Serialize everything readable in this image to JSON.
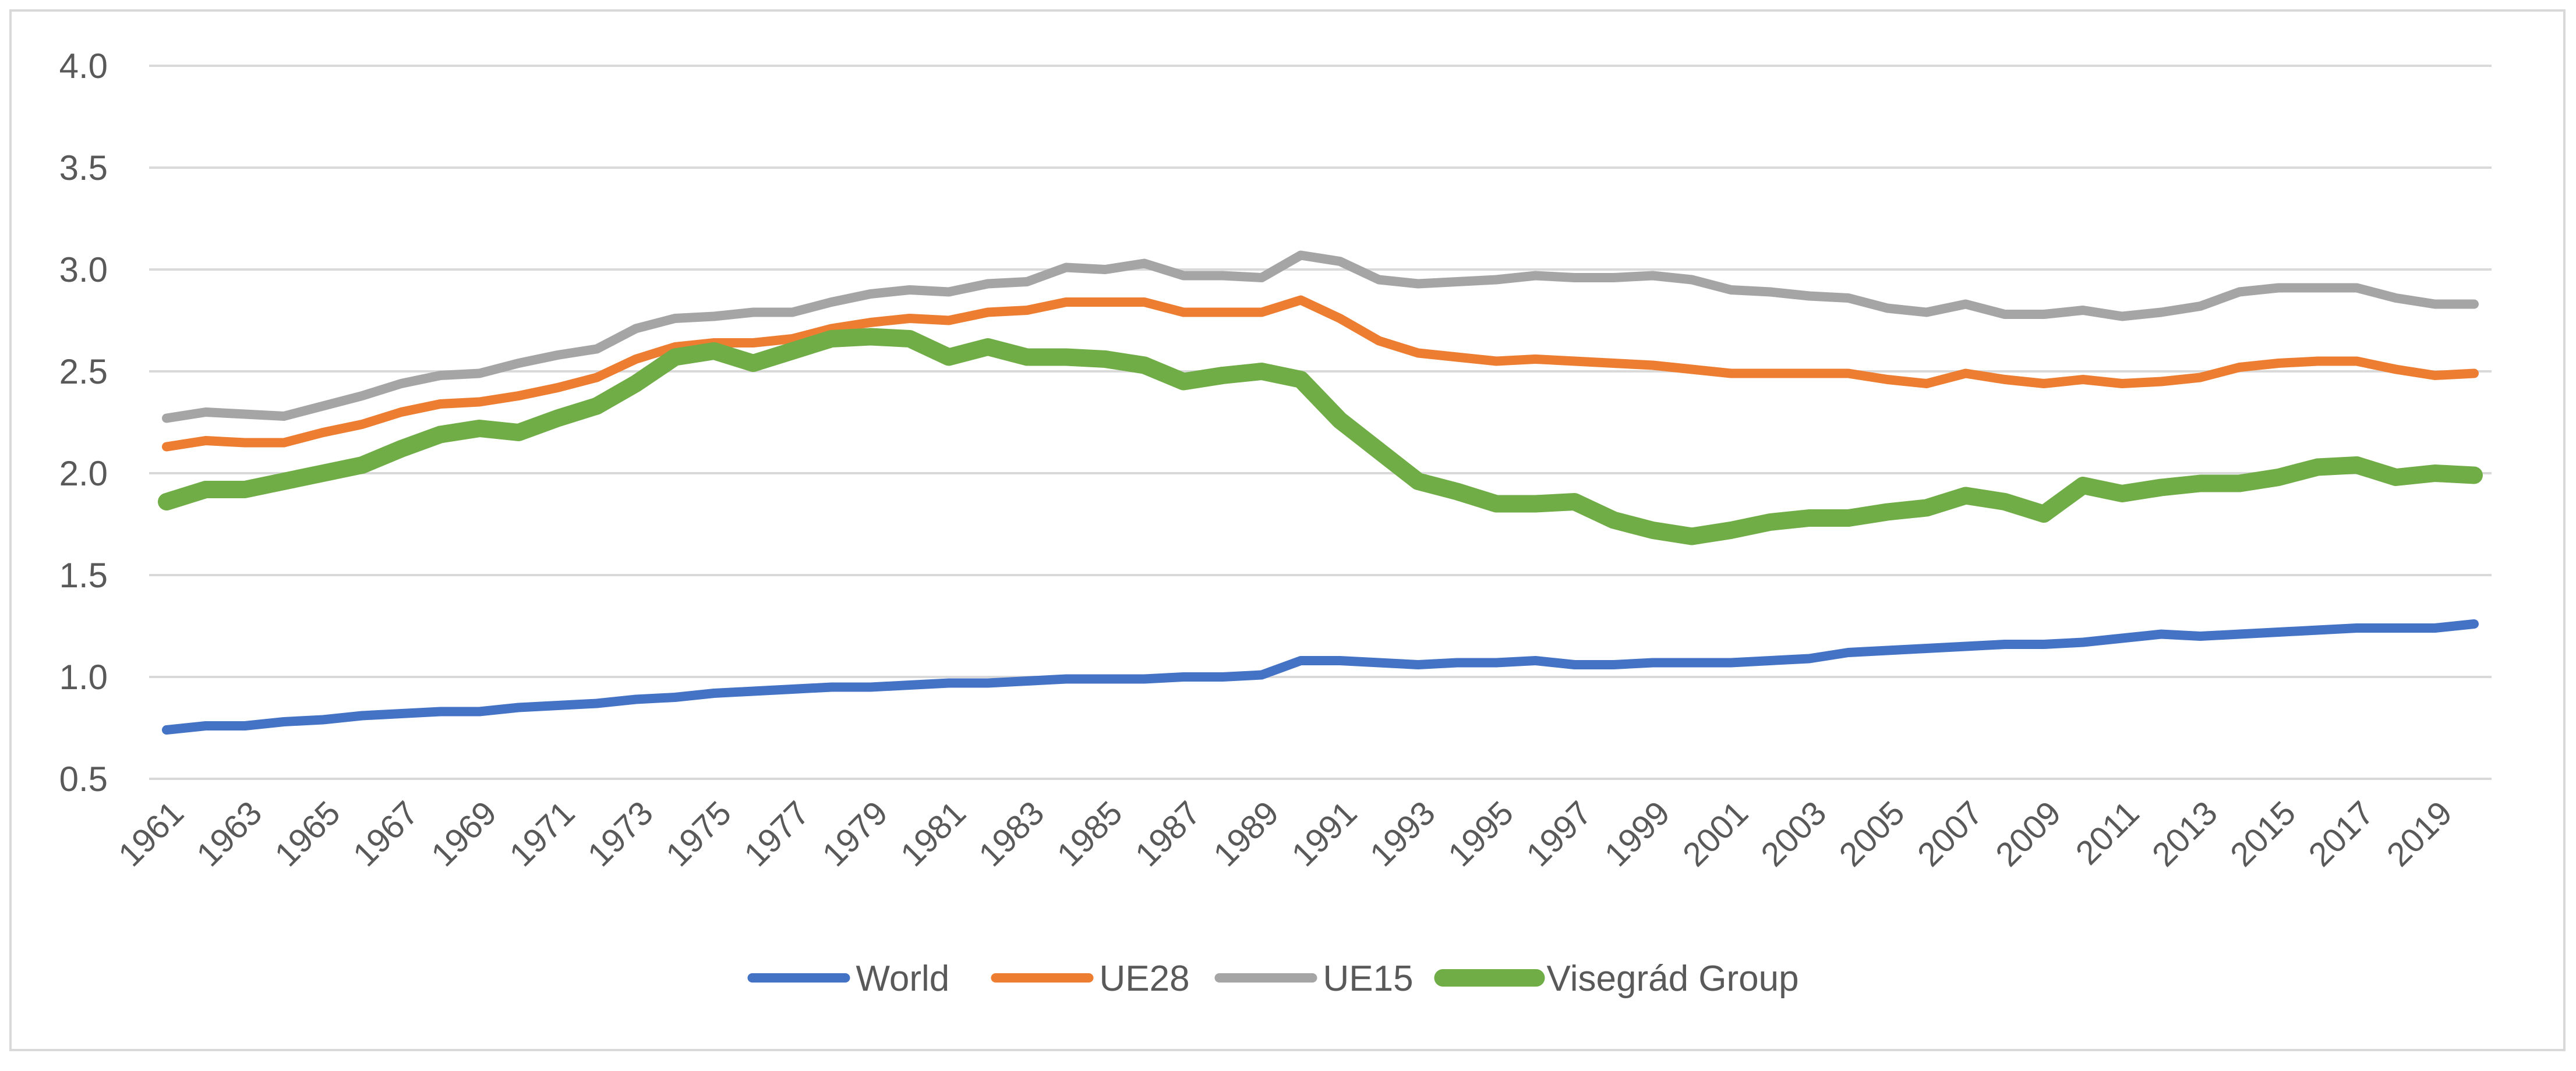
{
  "chart_data": {
    "type": "line",
    "title": "",
    "xlabel": "",
    "ylabel": "",
    "ylim": [
      0.5,
      4.0
    ],
    "yticks": [
      "0.5",
      "1.0",
      "1.5",
      "2.0",
      "2.5",
      "3.0",
      "3.5",
      "4.0"
    ],
    "yticks_values": [
      0.5,
      1.0,
      1.5,
      2.0,
      2.5,
      3.0,
      3.5,
      4.0
    ],
    "grid": true,
    "legend_position": "bottom",
    "xtick_labels": [
      "1961",
      "1963",
      "1965",
      "1967",
      "1969",
      "1971",
      "1973",
      "1975",
      "1977",
      "1979",
      "1981",
      "1983",
      "1985",
      "1987",
      "1989",
      "1991",
      "1993",
      "1995",
      "1997",
      "1999",
      "2001",
      "2003",
      "2005",
      "2007",
      "2009",
      "2011",
      "2013",
      "2015",
      "2017",
      "2019"
    ],
    "x": [
      1961,
      1962,
      1963,
      1964,
      1965,
      1966,
      1967,
      1968,
      1969,
      1970,
      1971,
      1972,
      1973,
      1974,
      1975,
      1976,
      1977,
      1978,
      1979,
      1980,
      1981,
      1982,
      1983,
      1984,
      1985,
      1986,
      1987,
      1988,
      1989,
      1990,
      1991,
      1992,
      1993,
      1994,
      1995,
      1996,
      1997,
      1998,
      1999,
      2000,
      2001,
      2002,
      2003,
      2004,
      2005,
      2006,
      2007,
      2008,
      2009,
      2010,
      2011,
      2012,
      2013,
      2014,
      2015,
      2016,
      2017,
      2018,
      2019,
      2020
    ],
    "series": [
      {
        "name": "World",
        "color": "#4472c4",
        "width": 16,
        "values": [
          0.74,
          0.76,
          0.76,
          0.78,
          0.79,
          0.81,
          0.82,
          0.83,
          0.83,
          0.85,
          0.86,
          0.87,
          0.89,
          0.9,
          0.92,
          0.93,
          0.94,
          0.95,
          0.95,
          0.96,
          0.97,
          0.97,
          0.98,
          0.99,
          0.99,
          0.99,
          1.0,
          1.0,
          1.01,
          1.08,
          1.08,
          1.07,
          1.06,
          1.07,
          1.07,
          1.08,
          1.06,
          1.06,
          1.07,
          1.07,
          1.07,
          1.08,
          1.09,
          1.12,
          1.13,
          1.14,
          1.15,
          1.16,
          1.16,
          1.17,
          1.19,
          1.21,
          1.2,
          1.21,
          1.22,
          1.23,
          1.24,
          1.24,
          1.24,
          1.26
        ]
      },
      {
        "name": "UE28",
        "color": "#ed7d31",
        "width": 16,
        "values": [
          2.13,
          2.16,
          2.15,
          2.15,
          2.2,
          2.24,
          2.3,
          2.34,
          2.35,
          2.38,
          2.42,
          2.47,
          2.56,
          2.62,
          2.64,
          2.64,
          2.66,
          2.71,
          2.74,
          2.76,
          2.75,
          2.79,
          2.8,
          2.84,
          2.84,
          2.84,
          2.79,
          2.79,
          2.79,
          2.85,
          2.76,
          2.65,
          2.59,
          2.57,
          2.55,
          2.56,
          2.55,
          2.54,
          2.53,
          2.51,
          2.49,
          2.49,
          2.49,
          2.49,
          2.46,
          2.44,
          2.49,
          2.46,
          2.44,
          2.46,
          2.44,
          2.45,
          2.47,
          2.52,
          2.54,
          2.55,
          2.55,
          2.51,
          2.48,
          2.49
        ]
      },
      {
        "name": "UE15",
        "color": "#a5a5a5",
        "width": 16,
        "values": [
          2.27,
          2.3,
          2.29,
          2.28,
          2.33,
          2.38,
          2.44,
          2.48,
          2.49,
          2.54,
          2.58,
          2.61,
          2.71,
          2.76,
          2.77,
          2.79,
          2.79,
          2.84,
          2.88,
          2.9,
          2.89,
          2.93,
          2.94,
          3.01,
          3.0,
          3.03,
          2.97,
          2.97,
          2.96,
          3.07,
          3.04,
          2.95,
          2.93,
          2.94,
          2.95,
          2.97,
          2.96,
          2.96,
          2.97,
          2.95,
          2.9,
          2.89,
          2.87,
          2.86,
          2.81,
          2.79,
          2.83,
          2.78,
          2.78,
          2.8,
          2.77,
          2.79,
          2.82,
          2.89,
          2.91,
          2.91,
          2.91,
          2.86,
          2.83,
          2.83
        ]
      },
      {
        "name": "Visegrád Group",
        "color": "#70ad47",
        "width": 30,
        "values": [
          1.86,
          1.92,
          1.92,
          1.96,
          2.0,
          2.04,
          2.12,
          2.19,
          2.22,
          2.2,
          2.27,
          2.33,
          2.44,
          2.57,
          2.6,
          2.54,
          2.6,
          2.66,
          2.67,
          2.66,
          2.57,
          2.62,
          2.57,
          2.57,
          2.56,
          2.53,
          2.45,
          2.48,
          2.5,
          2.46,
          2.26,
          2.11,
          1.96,
          1.91,
          1.85,
          1.85,
          1.86,
          1.77,
          1.72,
          1.69,
          1.72,
          1.76,
          1.78,
          1.78,
          1.81,
          1.83,
          1.89,
          1.86,
          1.8,
          1.94,
          1.9,
          1.93,
          1.95,
          1.95,
          1.98,
          2.03,
          2.04,
          1.98,
          2.0,
          1.99
        ]
      }
    ]
  }
}
